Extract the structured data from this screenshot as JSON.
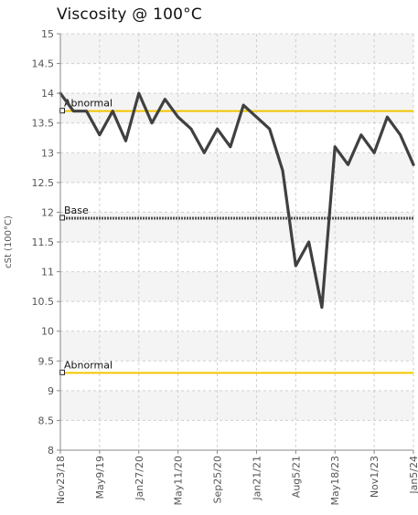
{
  "chart_data": {
    "type": "line",
    "title": "Viscosity @ 100°C",
    "ylabel": "cSt (100°C)",
    "xlabel": "",
    "ylim": [
      8,
      15
    ],
    "yticks": [
      "15",
      "14.5",
      "14",
      "13.5",
      "13",
      "12.5",
      "12",
      "11.5",
      "11",
      "10.5",
      "10",
      "9.5",
      "9",
      "8.5",
      "8"
    ],
    "xtick_labels": [
      "Nov23/18",
      "May9/19",
      "Jan27/20",
      "May11/20",
      "Sep25/20",
      "Jan21/21",
      "Aug5/21",
      "May18/23",
      "Nov1/23",
      "Jan5/24"
    ],
    "grid": true,
    "series": [
      {
        "values": [
          14.0,
          13.7,
          13.7,
          13.3,
          13.7,
          13.2,
          14.0,
          13.5,
          13.9,
          13.6,
          13.4,
          13.0,
          13.4,
          13.1,
          13.8,
          13.6,
          13.4,
          12.7,
          11.1,
          11.5,
          10.4,
          13.1,
          12.8,
          13.3,
          13.0,
          13.6,
          13.3,
          12.8
        ],
        "color": "#404040"
      }
    ],
    "reference_lines": [
      {
        "label": "Abnormal",
        "value": 13.7,
        "color": "#f2c500"
      },
      {
        "label": "Base",
        "value": 11.9,
        "color": "#555555"
      },
      {
        "label": "Abnormal",
        "value": 9.3,
        "color": "#f2c500"
      }
    ]
  }
}
